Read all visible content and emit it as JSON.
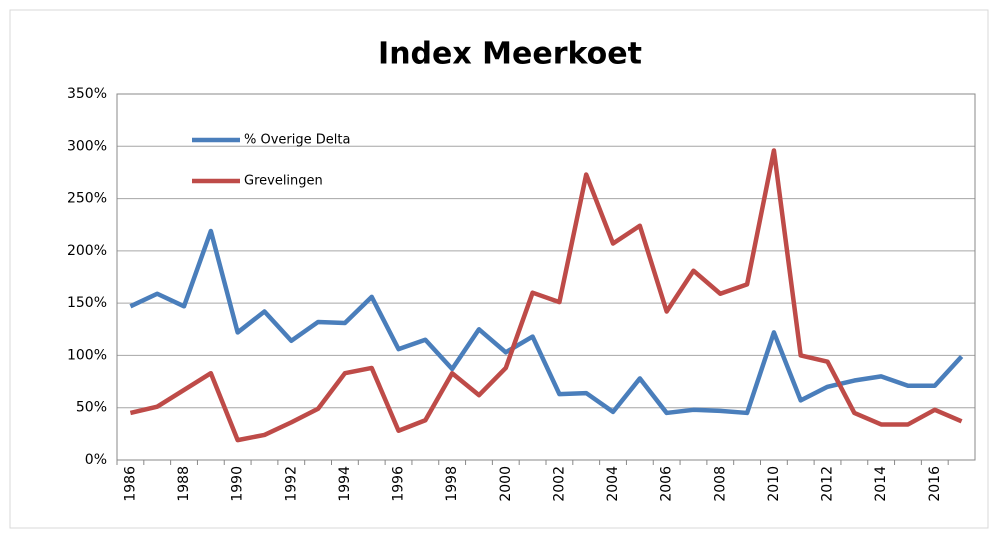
{
  "chart_data": {
    "type": "line",
    "title": "Index Meerkoet",
    "categories": [
      "1986",
      null,
      "1988",
      null,
      "1990",
      null,
      "1992",
      null,
      "1994",
      null,
      "1996",
      null,
      "1998",
      null,
      "2000",
      null,
      "2002",
      null,
      "2004",
      null,
      "2006",
      null,
      "2008",
      null,
      "2010",
      null,
      "2012",
      null,
      "2014",
      null,
      "2016",
      null
    ],
    "series": [
      {
        "name": "% Overige Delta",
        "color": "#4a7ebb",
        "values": [
          147,
          159,
          147,
          219,
          122,
          142,
          114,
          132,
          131,
          156,
          106,
          115,
          87,
          125,
          103,
          118,
          63,
          64,
          46,
          78,
          45,
          48,
          47,
          45,
          122,
          57,
          70,
          76,
          80,
          71,
          71,
          99
        ]
      },
      {
        "name": "Grevelingen",
        "color": "#be4b48",
        "values": [
          45,
          51,
          67,
          83,
          19,
          24,
          36,
          49,
          83,
          88,
          28,
          38,
          83,
          62,
          88,
          160,
          151,
          273,
          207,
          224,
          142,
          181,
          159,
          168,
          296,
          100,
          94,
          45,
          34,
          34,
          48,
          37
        ]
      }
    ],
    "ylim": [
      0,
      350
    ],
    "yticks": [
      {
        "value": 0,
        "label": "0%"
      },
      {
        "value": 50,
        "label": "50%"
      },
      {
        "value": 100,
        "label": "100%"
      },
      {
        "value": 150,
        "label": "150%"
      },
      {
        "value": 200,
        "label": "200%"
      },
      {
        "value": 250,
        "label": "250%"
      },
      {
        "value": 300,
        "label": "300%"
      },
      {
        "value": 350,
        "label": "350%"
      }
    ],
    "grid": true,
    "legend": "upper left"
  }
}
